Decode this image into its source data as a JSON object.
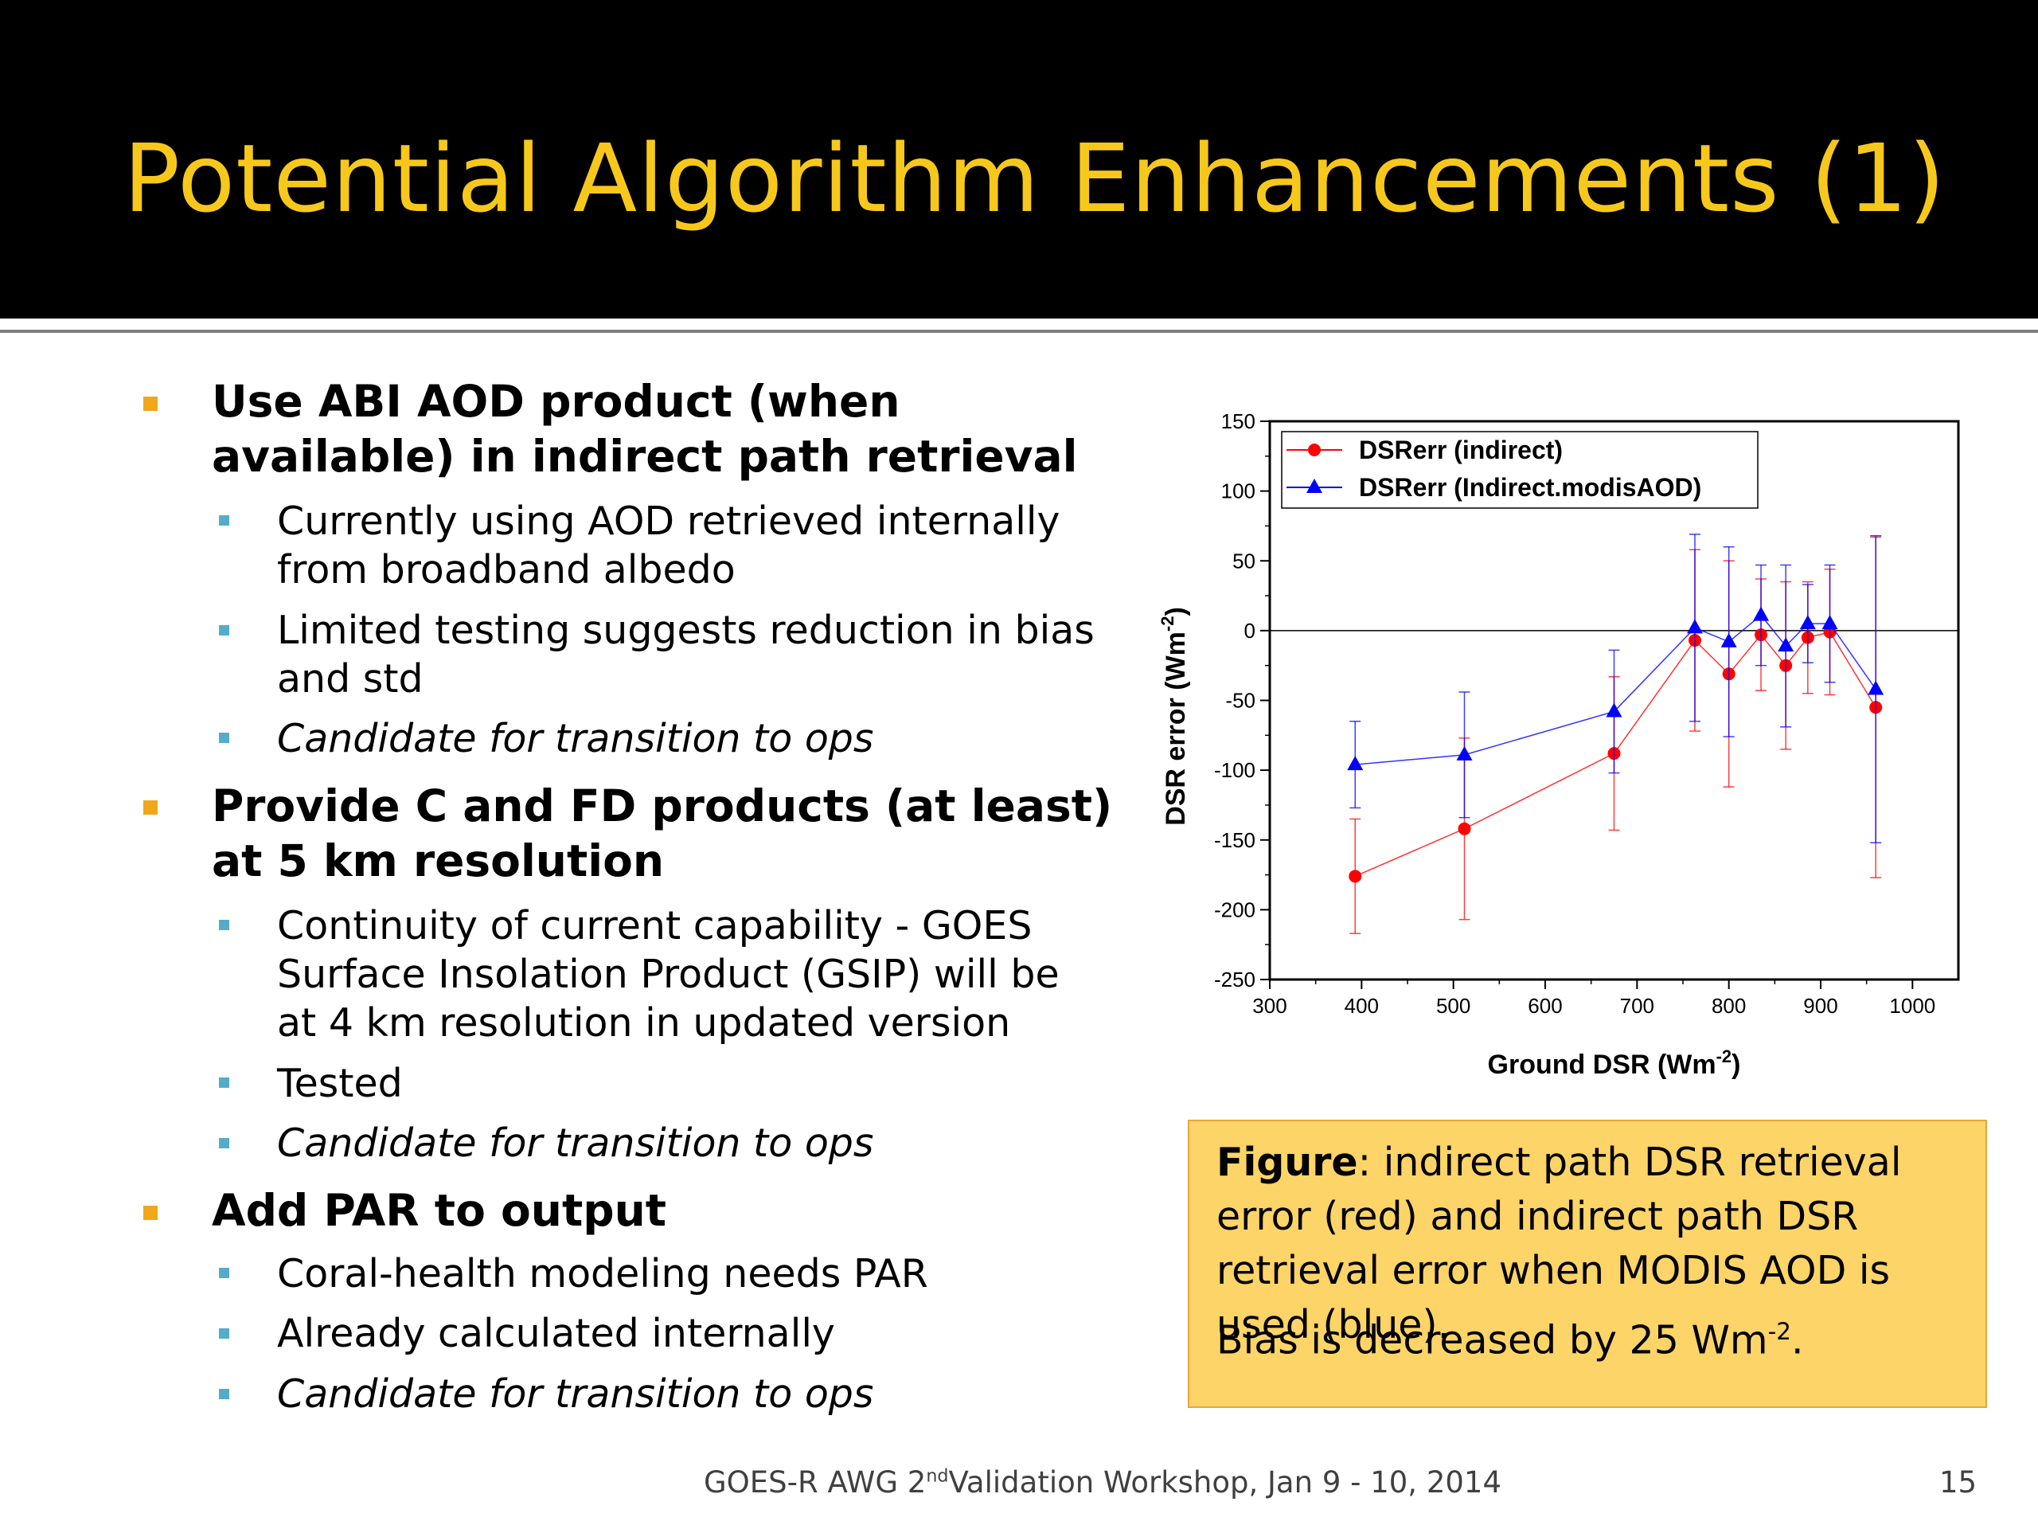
{
  "slide": {
    "title": "Potential Algorithm Enhancements (1)",
    "footer": {
      "prefix": "GOES-R AWG 2",
      "sup": "nd",
      "suffix": "Validation Workshop, Jan 9 - 10, 2014",
      "page": "15"
    }
  },
  "bullets": [
    {
      "text": "Use ABI AOD product (when available) in indirect path retrieval",
      "sub": [
        {
          "text": "Currently using AOD retrieved internally from broadband albedo",
          "italic": false
        },
        {
          "text": "Limited testing suggests reduction in bias and std",
          "italic": false
        },
        {
          "text": "Candidate for transition to ops",
          "italic": true
        }
      ]
    },
    {
      "text": "Provide C and FD products (at least) at 5 km resolution",
      "sub": [
        {
          "text": "Continuity of current capability - GOES Surface Insolation Product (GSIP) will be at 4 km resolution in updated version",
          "italic": false
        },
        {
          "text": "Tested",
          "italic": false
        },
        {
          "text": "Candidate for transition to ops",
          "italic": true
        }
      ]
    },
    {
      "text": "Add PAR to output",
      "sub": [
        {
          "text": "Coral-health modeling needs PAR",
          "italic": false
        },
        {
          "text": "Already calculated internally",
          "italic": false
        },
        {
          "text": "Candidate for transition to ops",
          "italic": true
        }
      ]
    }
  ],
  "caption": {
    "bold": "Figure",
    "rest": ": indirect path DSR retrieval error (red) and indirect path DSR retrieval error when MODIS AOD is used (blue).",
    "bias_prefix": "Bias is decreased by 25 Wm",
    "bias_sup": "-2",
    "bias_suffix": "."
  },
  "chart_data": {
    "type": "line",
    "xlabel": "Ground DSR (Wm",
    "xlabel_sup": "-2",
    "xlabel_suffix": ")",
    "ylabel": "DSR error (Wm",
    "ylabel_sup": "-2",
    "ylabel_suffix": ")",
    "xlim": [
      300,
      1050
    ],
    "ylim": [
      -250,
      150
    ],
    "xticks": [
      300,
      400,
      500,
      600,
      700,
      800,
      900,
      1000
    ],
    "yticks": [
      150,
      100,
      50,
      0,
      -50,
      -100,
      -150,
      -200,
      -250
    ],
    "zero_line": true,
    "legend_position": "top-left",
    "series": [
      {
        "name": "DSRerr (indirect)",
        "color": "#ff0000",
        "marker": "circle",
        "x": [
          393,
          512,
          675,
          763,
          800,
          835,
          862,
          886,
          910,
          960
        ],
        "y": [
          -176,
          -142,
          -88,
          -7,
          -31,
          -3,
          -25,
          -5,
          -1,
          -55
        ],
        "err": [
          41,
          65,
          55,
          65,
          81,
          40,
          60,
          40,
          45,
          122
        ]
      },
      {
        "name": "DSRerr (Indirect.modisAOD)",
        "color": "#0000ff",
        "marker": "triangle",
        "x": [
          393,
          512,
          675,
          763,
          800,
          835,
          862,
          886,
          910,
          960
        ],
        "y": [
          -96,
          -89,
          -58,
          2,
          -8,
          11,
          -11,
          5,
          5,
          -42
        ],
        "err": [
          31,
          45,
          44,
          67,
          68,
          36,
          58,
          28,
          42,
          110
        ]
      }
    ]
  }
}
